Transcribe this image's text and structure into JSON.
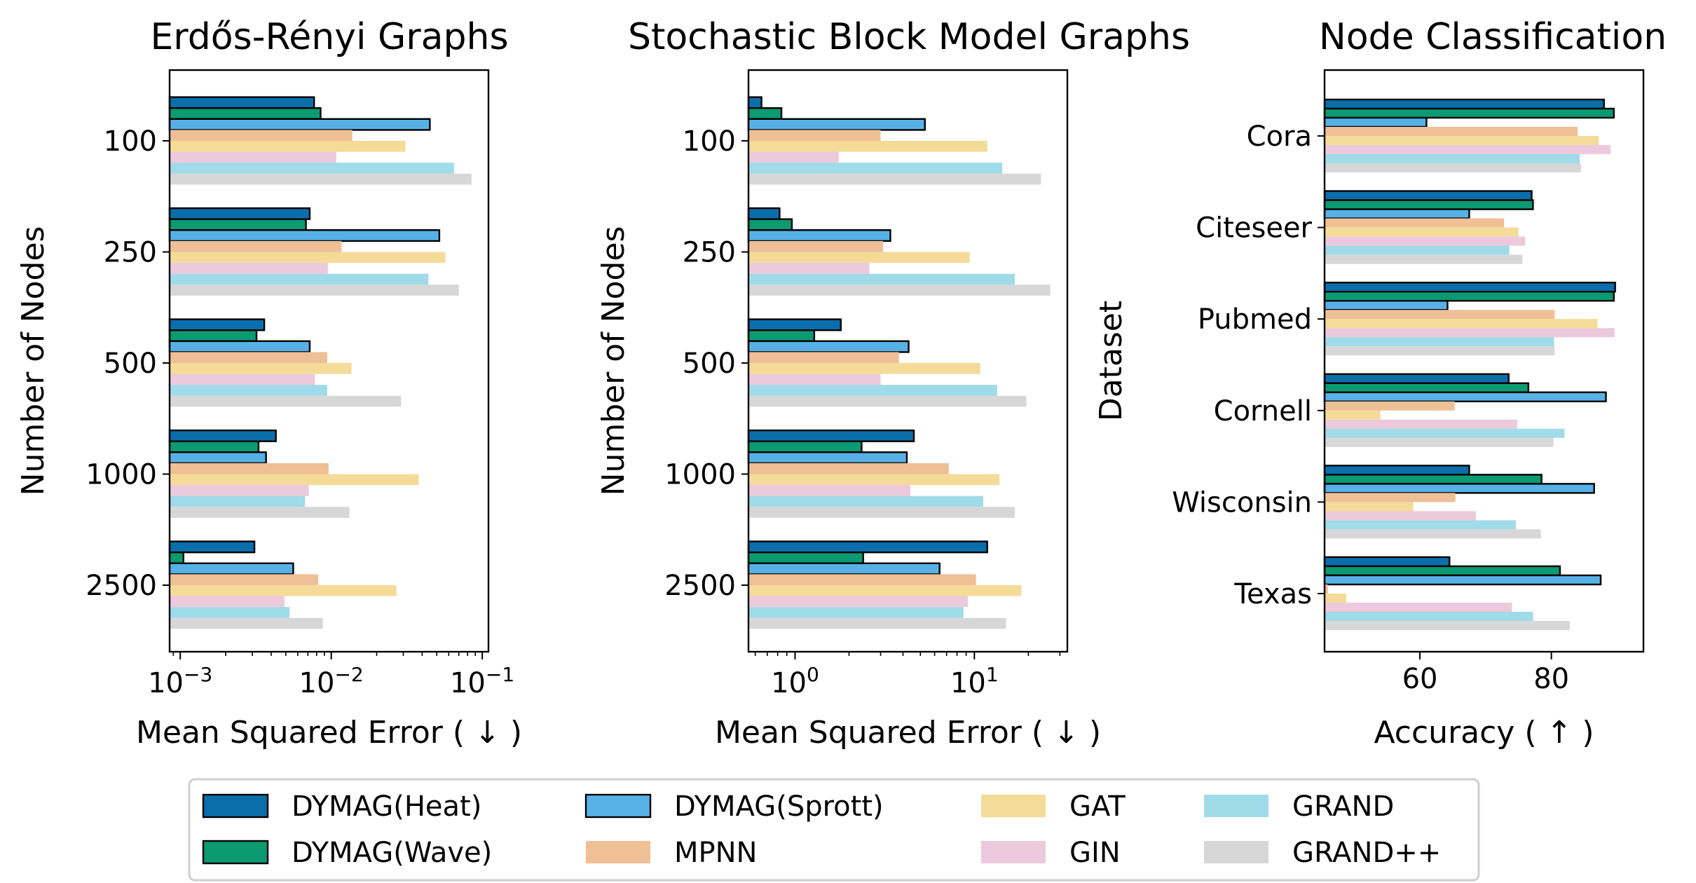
{
  "legend": {
    "entries": [
      {
        "key": "heat",
        "label": "DYMAG(Heat)"
      },
      {
        "key": "wave",
        "label": "DYMAG(Wave)"
      },
      {
        "key": "sprott",
        "label": "DYMAG(Sprott)"
      },
      {
        "key": "mpnn",
        "label": "MPNN"
      },
      {
        "key": "gat",
        "label": "GAT"
      },
      {
        "key": "gin",
        "label": "GIN"
      },
      {
        "key": "grand",
        "label": "GRAND"
      },
      {
        "key": "grandpp",
        "label": "GRAND++"
      }
    ],
    "placement": "bottom-center",
    "columns": 4
  },
  "colors": {
    "heat": "#0a6eab",
    "wave": "#0b9a72",
    "sprott": "#58b1e6",
    "mpnn": "#efbf96",
    "gat": "#f4db98",
    "gin": "#ecc9dc",
    "grand": "#9fdbe8",
    "grandpp": "#d7d7d7",
    "edge": "#000000"
  },
  "chart_data": [
    {
      "type": "bar",
      "orientation": "horizontal",
      "title": "Erdős-Rényi Graphs",
      "xlabel": "Mean Squared Error (  ↓  )",
      "ylabel": "Number of Nodes",
      "xscale": "log",
      "xlim": [
        0.00085,
        0.11
      ],
      "xticks": [
        {
          "value": 0.001,
          "base": "10",
          "exp": "−3"
        },
        {
          "value": 0.01,
          "base": "10",
          "exp": "−2"
        },
        {
          "value": 0.1,
          "base": "10",
          "exp": "−1"
        }
      ],
      "categories": [
        "100",
        "250",
        "500",
        "1000",
        "2500"
      ],
      "series": [
        {
          "key": "heat",
          "name": "DYMAG(Heat)",
          "values": [
            0.0077,
            0.0072,
            0.0036,
            0.0043,
            0.0031
          ]
        },
        {
          "key": "wave",
          "name": "DYMAG(Wave)",
          "values": [
            0.0085,
            0.0068,
            0.0032,
            0.0033,
            0.00105
          ]
        },
        {
          "key": "sprott",
          "name": "DYMAG(Sprott)",
          "values": [
            0.045,
            0.052,
            0.0072,
            0.0037,
            0.0056
          ]
        },
        {
          "key": "mpnn",
          "name": "MPNN",
          "values": [
            0.0138,
            0.0117,
            0.0094,
            0.0096,
            0.0082
          ]
        },
        {
          "key": "gat",
          "name": "GAT",
          "values": [
            0.031,
            0.057,
            0.0136,
            0.038,
            0.027
          ]
        },
        {
          "key": "gin",
          "name": "GIN",
          "values": [
            0.0108,
            0.0095,
            0.0078,
            0.0071,
            0.0049
          ]
        },
        {
          "key": "grand",
          "name": "GRAND",
          "values": [
            0.065,
            0.044,
            0.0094,
            0.0067,
            0.0053
          ]
        },
        {
          "key": "grandpp",
          "name": "GRAND++",
          "values": [
            0.085,
            0.07,
            0.029,
            0.0132,
            0.0088
          ]
        }
      ]
    },
    {
      "type": "bar",
      "orientation": "horizontal",
      "title": "Stochastic Block Model Graphs",
      "xlabel": "Mean Squared Error (  ↓  )",
      "ylabel": "Number of Nodes",
      "xscale": "log",
      "xlim": [
        0.55,
        33
      ],
      "xticks": [
        {
          "value": 1,
          "base": "10",
          "exp": "0"
        },
        {
          "value": 10,
          "base": "10",
          "exp": "1"
        }
      ],
      "categories": [
        "100",
        "250",
        "500",
        "1000",
        "2500"
      ],
      "series": [
        {
          "key": "heat",
          "name": "DYMAG(Heat)",
          "values": [
            0.65,
            0.82,
            1.8,
            4.6,
            11.8
          ]
        },
        {
          "key": "wave",
          "name": "DYMAG(Wave)",
          "values": [
            0.84,
            0.96,
            1.28,
            2.35,
            2.4
          ]
        },
        {
          "key": "sprott",
          "name": "DYMAG(Sprott)",
          "values": [
            5.3,
            3.4,
            4.3,
            4.2,
            6.4
          ]
        },
        {
          "key": "mpnn",
          "name": "MPNN",
          "values": [
            3.0,
            3.1,
            3.8,
            7.2,
            10.2
          ]
        },
        {
          "key": "gat",
          "name": "GAT",
          "values": [
            11.8,
            9.4,
            10.8,
            13.8,
            18.3
          ]
        },
        {
          "key": "gin",
          "name": "GIN",
          "values": [
            1.75,
            2.6,
            3.0,
            4.4,
            9.2
          ]
        },
        {
          "key": "grand",
          "name": "GRAND",
          "values": [
            14.3,
            16.8,
            13.4,
            11.2,
            8.7
          ]
        },
        {
          "key": "grandpp",
          "name": "GRAND++",
          "values": [
            23.5,
            26.5,
            19.5,
            16.8,
            15.0
          ]
        }
      ]
    },
    {
      "type": "bar",
      "orientation": "horizontal",
      "title": "Node Classification",
      "xlabel": "Accuracy (  ↑  )",
      "ylabel": "Dataset",
      "xscale": "linear",
      "xlim": [
        45.5,
        94
      ],
      "xticks": [
        {
          "value": 60,
          "label": "60"
        },
        {
          "value": 80,
          "label": "80"
        }
      ],
      "categories": [
        "Cora",
        "Citeseer",
        "Pubmed",
        "Cornell",
        "Wisconsin",
        "Texas"
      ],
      "series": [
        {
          "key": "heat",
          "name": "DYMAG(Heat)",
          "values": [
            88.0,
            77.0,
            89.7,
            73.5,
            67.5,
            64.5
          ]
        },
        {
          "key": "wave",
          "name": "DYMAG(Wave)",
          "values": [
            89.5,
            77.2,
            89.5,
            76.5,
            78.5,
            81.3
          ]
        },
        {
          "key": "sprott",
          "name": "DYMAG(Sprott)",
          "values": [
            61.0,
            67.5,
            64.2,
            88.3,
            86.5,
            87.5
          ]
        },
        {
          "key": "mpnn",
          "name": "MPNN",
          "values": [
            84.0,
            72.8,
            80.5,
            65.3,
            65.4,
            46.0
          ]
        },
        {
          "key": "gat",
          "name": "GAT",
          "values": [
            87.2,
            75.0,
            87.0,
            54.0,
            59.0,
            48.8
          ]
        },
        {
          "key": "gin",
          "name": "GIN",
          "values": [
            89.0,
            76.0,
            89.6,
            74.8,
            68.5,
            74.0
          ]
        },
        {
          "key": "grand",
          "name": "GRAND",
          "values": [
            84.3,
            73.6,
            80.4,
            82.0,
            74.6,
            77.2
          ]
        },
        {
          "key": "grandpp",
          "name": "GRAND++",
          "values": [
            84.5,
            75.6,
            80.5,
            80.3,
            78.4,
            82.8
          ]
        }
      ]
    }
  ]
}
